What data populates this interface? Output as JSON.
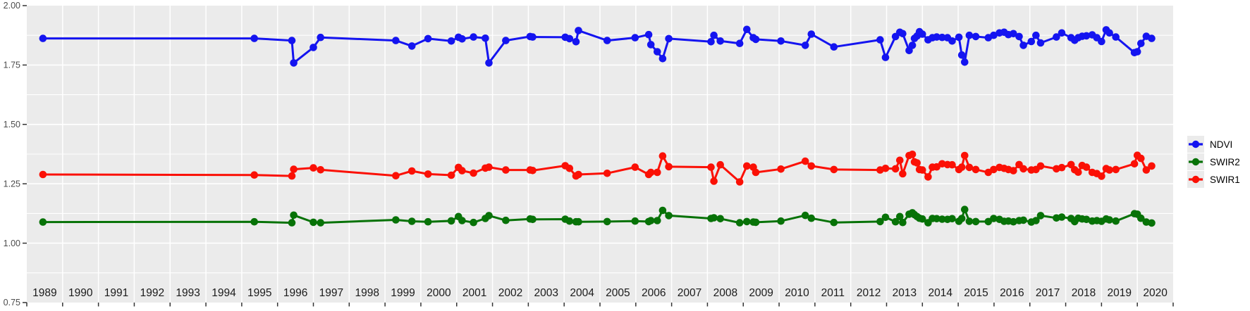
{
  "colors": {
    "panel_bg": "#EBEBEB",
    "grid": "#FFFFFF",
    "tick": "#333333",
    "axis_text": "#4D4D4D",
    "year_text": "#1A1A1A",
    "legend_key_bg": "#EBEBEB",
    "legend_text": "#000000"
  },
  "legend": {
    "items": [
      {
        "label": "NDVI",
        "color": "#1414F0"
      },
      {
        "label": "SWIR2",
        "color": "#077207"
      },
      {
        "label": "SWIR1",
        "color": "#FB1005"
      }
    ]
  },
  "chart_data": {
    "type": "line",
    "title": "",
    "xlabel": "",
    "ylabel": "",
    "legend_position": "right",
    "grid": "on",
    "x_start": 1989,
    "x_end": 2021,
    "ylim": [
      0.75,
      2.0
    ],
    "y_minor_step": 0.125,
    "y_tick_labels": [
      "2.00",
      "1.75",
      "1.50",
      "1.25",
      "1.00",
      "0.75"
    ],
    "y_tick_values": [
      2.0,
      1.75,
      1.5,
      1.25,
      1.0,
      0.75
    ],
    "categories": [
      "1989",
      "1990",
      "1991",
      "1992",
      "1993",
      "1994",
      "1995",
      "1996",
      "1997",
      "1998",
      "1999",
      "2000",
      "2001",
      "2002",
      "2003",
      "2004",
      "2005",
      "2006",
      "2007",
      "2008",
      "2009",
      "2010",
      "2011",
      "2012",
      "2013",
      "2014",
      "2015",
      "2016",
      "2017",
      "2018",
      "2019",
      "2020"
    ],
    "x": [
      1989.45,
      1995.35,
      1996.4,
      1996.45,
      1997.0,
      1997.2,
      1999.3,
      1999.75,
      2000.2,
      2000.85,
      2001.05,
      2001.15,
      2001.47,
      2001.8,
      2001.9,
      2002.37,
      2003.05,
      2003.12,
      2004.03,
      2004.15,
      2004.33,
      2004.4,
      2005.2,
      2005.98,
      2006.36,
      2006.42,
      2006.6,
      2006.75,
      2006.92,
      2008.1,
      2008.18,
      2008.36,
      2008.9,
      2009.1,
      2009.28,
      2009.35,
      2010.05,
      2010.73,
      2010.9,
      2011.53,
      2012.82,
      2012.97,
      2013.25,
      2013.37,
      2013.45,
      2013.63,
      2013.72,
      2013.78,
      2013.85,
      2013.92,
      2014.0,
      2014.16,
      2014.28,
      2014.4,
      2014.55,
      2014.7,
      2014.83,
      2015.02,
      2015.1,
      2015.18,
      2015.31,
      2015.49,
      2015.84,
      2015.99,
      2016.15,
      2016.28,
      2016.4,
      2016.54,
      2016.7,
      2016.82,
      2017.04,
      2017.17,
      2017.3,
      2017.74,
      2017.89,
      2018.15,
      2018.25,
      2018.35,
      2018.46,
      2018.58,
      2018.74,
      2018.87,
      2019.0,
      2019.13,
      2019.22,
      2019.4,
      2019.92,
      2020.0,
      2020.1,
      2020.25,
      2020.4
    ],
    "series": [
      {
        "name": "NDVI",
        "color": "#1414F0",
        "values": [
          1.862,
          1.862,
          1.853,
          1.759,
          1.824,
          1.866,
          1.853,
          1.83,
          1.861,
          1.851,
          1.867,
          1.86,
          1.868,
          1.863,
          1.759,
          1.853,
          1.87,
          1.868,
          1.867,
          1.861,
          1.848,
          1.895,
          1.853,
          1.865,
          1.878,
          1.836,
          1.806,
          1.777,
          1.861,
          1.848,
          1.875,
          1.851,
          1.841,
          1.9,
          1.865,
          1.858,
          1.851,
          1.833,
          1.88,
          1.826,
          1.856,
          1.782,
          1.87,
          1.888,
          1.882,
          1.811,
          1.833,
          1.862,
          1.872,
          1.89,
          1.88,
          1.856,
          1.865,
          1.868,
          1.866,
          1.865,
          1.851,
          1.867,
          1.792,
          1.762,
          1.875,
          1.87,
          1.865,
          1.875,
          1.885,
          1.888,
          1.878,
          1.882,
          1.87,
          1.833,
          1.849,
          1.875,
          1.843,
          1.868,
          1.885,
          1.865,
          1.854,
          1.865,
          1.871,
          1.873,
          1.877,
          1.865,
          1.849,
          1.898,
          1.885,
          1.868,
          1.802,
          1.806,
          1.841,
          1.871,
          1.862
        ]
      },
      {
        "name": "SWIR2",
        "color": "#077207",
        "values": [
          1.089,
          1.09,
          1.086,
          1.118,
          1.088,
          1.086,
          1.098,
          1.092,
          1.09,
          1.094,
          1.112,
          1.095,
          1.087,
          1.104,
          1.116,
          1.096,
          1.102,
          1.1,
          1.101,
          1.093,
          1.09,
          1.09,
          1.091,
          1.093,
          1.091,
          1.095,
          1.095,
          1.138,
          1.116,
          1.104,
          1.107,
          1.103,
          1.086,
          1.091,
          1.089,
          1.088,
          1.093,
          1.117,
          1.105,
          1.087,
          1.091,
          1.109,
          1.09,
          1.112,
          1.087,
          1.122,
          1.128,
          1.12,
          1.112,
          1.105,
          1.102,
          1.086,
          1.104,
          1.103,
          1.101,
          1.1,
          1.103,
          1.092,
          1.104,
          1.142,
          1.092,
          1.091,
          1.091,
          1.104,
          1.1,
          1.092,
          1.093,
          1.09,
          1.095,
          1.097,
          1.089,
          1.095,
          1.116,
          1.106,
          1.11,
          1.104,
          1.091,
          1.105,
          1.102,
          1.1,
          1.093,
          1.095,
          1.092,
          1.102,
          1.098,
          1.093,
          1.124,
          1.122,
          1.105,
          1.089,
          1.085
        ]
      },
      {
        "name": "SWIR1",
        "color": "#FB1005",
        "values": [
          1.289,
          1.287,
          1.283,
          1.311,
          1.317,
          1.309,
          1.284,
          1.304,
          1.291,
          1.286,
          1.319,
          1.305,
          1.295,
          1.316,
          1.32,
          1.308,
          1.308,
          1.306,
          1.326,
          1.315,
          1.283,
          1.289,
          1.294,
          1.32,
          1.289,
          1.298,
          1.298,
          1.367,
          1.322,
          1.32,
          1.261,
          1.33,
          1.258,
          1.325,
          1.32,
          1.298,
          1.312,
          1.345,
          1.325,
          1.31,
          1.308,
          1.315,
          1.313,
          1.349,
          1.292,
          1.369,
          1.374,
          1.342,
          1.338,
          1.31,
          1.308,
          1.279,
          1.32,
          1.321,
          1.334,
          1.331,
          1.33,
          1.31,
          1.32,
          1.369,
          1.319,
          1.31,
          1.298,
          1.31,
          1.319,
          1.315,
          1.31,
          1.305,
          1.331,
          1.313,
          1.308,
          1.31,
          1.325,
          1.313,
          1.318,
          1.331,
          1.309,
          1.299,
          1.327,
          1.32,
          1.298,
          1.293,
          1.282,
          1.314,
          1.308,
          1.31,
          1.334,
          1.37,
          1.357,
          1.308,
          1.325
        ]
      }
    ]
  }
}
